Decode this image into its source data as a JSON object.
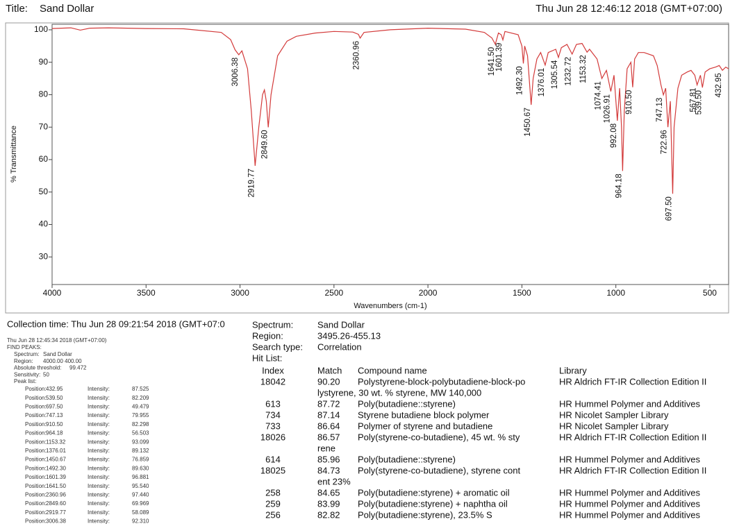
{
  "header": {
    "title_label": "Title:",
    "title": "Sand Dollar",
    "timestamp": "Thu Jun 28 12:46:12 2018 (GMT+07:00)"
  },
  "chart_data": {
    "type": "line",
    "x_label": "Wavenumbers (cm-1)",
    "y_label": "% Transmittance",
    "xlim": [
      4000,
      400
    ],
    "ylim": [
      21.5,
      101.7
    ],
    "xticks": [
      4000,
      3500,
      3000,
      2500,
      2000,
      1500,
      1000,
      500
    ],
    "yticks": [
      30,
      40,
      50,
      60,
      70,
      80,
      90,
      100
    ],
    "x": [
      4000,
      3900,
      3850,
      3800,
      3700,
      3500,
      3300,
      3100,
      3050,
      3026,
      3006.38,
      2990,
      2960,
      2940,
      2919.77,
      2900,
      2880,
      2870,
      2860,
      2849.6,
      2835,
      2800,
      2750,
      2700,
      2600,
      2500,
      2400,
      2370,
      2360.96,
      2340,
      2200,
      2000,
      1800,
      1700,
      1660,
      1641.5,
      1625,
      1610,
      1601.39,
      1590,
      1520,
      1500,
      1492.3,
      1485,
      1470,
      1450.67,
      1440,
      1420,
      1400,
      1376.01,
      1360,
      1320,
      1305.54,
      1290,
      1260,
      1232.72,
      1210,
      1180,
      1153.32,
      1140,
      1100,
      1074.41,
      1050,
      1026.91,
      1010,
      992.08,
      980,
      970,
      964.18,
      955,
      940,
      920,
      910.5,
      900,
      880,
      850,
      800,
      780,
      760,
      747.13,
      735,
      722.96,
      710,
      697.5,
      690,
      670,
      650,
      620,
      600,
      580,
      567.81,
      550,
      539.5,
      525,
      500,
      470,
      450,
      432.95,
      415,
      400
    ],
    "series": [
      {
        "name": "Sand Dollar",
        "color": "#d33a3a",
        "values": [
          100.4,
          100.6,
          99.9,
          100.5,
          100.6,
          100.4,
          100.3,
          99.2,
          97,
          93.8,
          92.31,
          93.5,
          88,
          75,
          58.09,
          70,
          80,
          81.5,
          78,
          69.97,
          80,
          92,
          96.5,
          98,
          99,
          99.5,
          99.3,
          98.6,
          97.44,
          99.2,
          100,
          100.5,
          100.2,
          99.2,
          97.5,
          95.54,
          99,
          98.5,
          96.88,
          99.5,
          98.5,
          95,
          89.63,
          95,
          92,
          76.86,
          85,
          91,
          93,
          89.13,
          93,
          94,
          91.5,
          94.5,
          95.5,
          92.5,
          95.5,
          95.8,
          93.1,
          94,
          91,
          85,
          87.5,
          81,
          86,
          72,
          82,
          70,
          56.5,
          75,
          88,
          90,
          82.3,
          91,
          93,
          93,
          92,
          89,
          83,
          79.96,
          82,
          70,
          78,
          49.48,
          70,
          82,
          86,
          87,
          87.5,
          86,
          83,
          86,
          82.21,
          87,
          88,
          88.5,
          89,
          87.53,
          88.5,
          88
        ]
      }
    ],
    "peaks": [
      {
        "value": 3006.38,
        "label": "3006.38"
      },
      {
        "value": 2919.77,
        "label": "2919.77"
      },
      {
        "value": 2849.6,
        "label": "2849.60"
      },
      {
        "value": 2360.96,
        "label": "2360.96"
      },
      {
        "value": 1641.5,
        "label": "1641.50"
      },
      {
        "value": 1601.39,
        "label": "1601.39"
      },
      {
        "value": 1492.3,
        "label": "1492.30"
      },
      {
        "value": 1450.67,
        "label": "1450.67"
      },
      {
        "value": 1376.01,
        "label": "1376.01"
      },
      {
        "value": 1305.54,
        "label": "1305.54"
      },
      {
        "value": 1232.72,
        "label": "1232.72"
      },
      {
        "value": 1153.32,
        "label": "1153.32"
      },
      {
        "value": 1074.41,
        "label": "1074.41"
      },
      {
        "value": 1026.91,
        "label": "1026.91"
      },
      {
        "value": 992.08,
        "label": "992.08"
      },
      {
        "value": 964.18,
        "label": "964.18"
      },
      {
        "value": 910.5,
        "label": "910.50"
      },
      {
        "value": 747.13,
        "label": "747.13"
      },
      {
        "value": 722.96,
        "label": "722.96"
      },
      {
        "value": 697.5,
        "label": "697.50"
      },
      {
        "value": 567.81,
        "label": "567.81"
      },
      {
        "value": 539.5,
        "label": "539.50"
      },
      {
        "value": 432.95,
        "label": "432.95"
      }
    ]
  },
  "collection_time": "Collection time: Thu Jun 28 09:21:54 2018 (GMT+07:0",
  "find_peaks": {
    "timestamp": "Thu Jun 28 12:45:34 2018 (GMT+07:00)",
    "heading": "FIND PEAKS:",
    "fields": [
      [
        "Spectrum:",
        "Sand Dollar"
      ],
      [
        "Region:",
        "4000.00  400.00"
      ],
      [
        "Absolute threshold:",
        "99.472"
      ],
      [
        "Sensitivity:",
        "50"
      ]
    ],
    "peak_list_label": "Peak list:",
    "position_label": "Position:",
    "intensity_label": "Intensity:",
    "rows": [
      [
        "432.95",
        "87.525"
      ],
      [
        "539.50",
        "82.209"
      ],
      [
        "697.50",
        "49.479"
      ],
      [
        "747.13",
        "79.955"
      ],
      [
        "910.50",
        "82.298"
      ],
      [
        "964.18",
        "56.503"
      ],
      [
        "1153.32",
        "93.099"
      ],
      [
        "1376.01",
        "89.132"
      ],
      [
        "1450.67",
        "76.859"
      ],
      [
        "1492.30",
        "89.630"
      ],
      [
        "1601.39",
        "96.881"
      ],
      [
        "1641.50",
        "95.540"
      ],
      [
        "2360.96",
        "97.440"
      ],
      [
        "2849.60",
        "69.969"
      ],
      [
        "2919.77",
        "58.089"
      ],
      [
        "3006.38",
        "92.310"
      ]
    ]
  },
  "search": {
    "fields": [
      [
        "Spectrum:",
        "Sand Dollar"
      ],
      [
        "Region:",
        "3495.26-455.13"
      ],
      [
        "Search type:",
        "Correlation"
      ]
    ],
    "hit_list_label": "Hit List:",
    "columns": [
      "Index",
      "Match",
      "Compound name",
      "Library"
    ],
    "rows": [
      {
        "index": "18042",
        "match": "90.20",
        "name": [
          "Polystyrene-block-polybutadiene-block-po",
          "lystyrene, 30 wt. % styrene, MW 140,000"
        ],
        "library": "HR Aldrich FT-IR Collection Edition II"
      },
      {
        "index": "613",
        "match": "87.72",
        "name": [
          "Poly(butadiene::styrene)"
        ],
        "library": "HR Hummel Polymer and Additives"
      },
      {
        "index": "734",
        "match": "87.14",
        "name": [
          "Styrene butadiene block polymer"
        ],
        "library": "HR Nicolet Sampler Library"
      },
      {
        "index": "733",
        "match": "86.64",
        "name": [
          "Polymer of styrene and butadiene"
        ],
        "library": "HR Nicolet Sampler Library"
      },
      {
        "index": "18026",
        "match": "86.57",
        "name": [
          "Poly(styrene-co-butadiene), 45 wt. % sty",
          "rene"
        ],
        "library": "HR Aldrich FT-IR Collection Edition II"
      },
      {
        "index": "614",
        "match": "85.96",
        "name": [
          "Poly(butadiene::styrene)"
        ],
        "library": "HR Hummel Polymer and Additives"
      },
      {
        "index": "18025",
        "match": "84.73",
        "name": [
          "Poly(styrene-co-butadiene), styrene cont",
          "ent 23%"
        ],
        "library": "HR Aldrich FT-IR Collection Edition II"
      },
      {
        "index": "258",
        "match": "84.65",
        "name": [
          "Poly(butadiene:styrene) + aromatic oil"
        ],
        "library": "HR Hummel Polymer and Additives"
      },
      {
        "index": "259",
        "match": "83.99",
        "name": [
          "Poly(butadiene:styrene) + naphtha oil"
        ],
        "library": "HR Hummel Polymer and Additives"
      },
      {
        "index": "256",
        "match": "82.82",
        "name": [
          "Poly(butadiene:styrene), 23.5% S"
        ],
        "library": "HR Hummel Polymer and Additives"
      }
    ]
  }
}
